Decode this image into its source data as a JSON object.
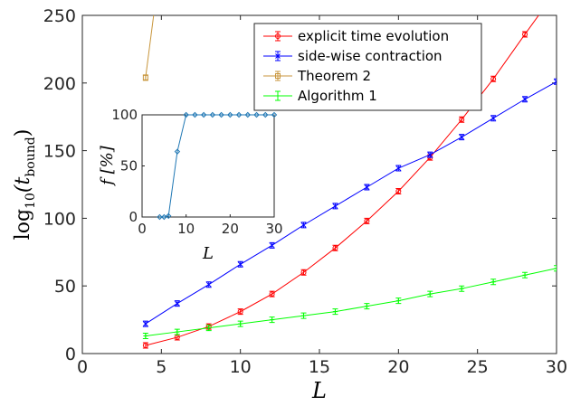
{
  "chart_data": [
    {
      "type": "line",
      "title": "",
      "xlabel": "L",
      "ylabel": {
        "base": "log",
        "sub": "10",
        "arg_open": "(t",
        "arg_sub": "bound",
        "arg_close": ")"
      },
      "xlim": [
        0,
        30
      ],
      "ylim": [
        0,
        250
      ],
      "xticks": [
        0,
        5,
        10,
        15,
        20,
        25,
        30
      ],
      "yticks": [
        0,
        50,
        100,
        150,
        200,
        250
      ],
      "legend_position": "top-right",
      "grid": false,
      "series": [
        {
          "name": "explicit time evolution",
          "color": "#ff0000",
          "marker": "circle",
          "x": [
            4,
            6,
            8,
            10,
            12,
            14,
            16,
            18,
            20,
            22,
            24,
            26,
            28,
            29.3
          ],
          "y": [
            6,
            12,
            20,
            31,
            44,
            60,
            78,
            98,
            120,
            145,
            173,
            203,
            236,
            257
          ],
          "marker_count": 13
        },
        {
          "name": "side-wise contraction",
          "color": "#0000ff",
          "marker": "cross",
          "x": [
            4,
            6,
            8,
            10,
            12,
            14,
            16,
            18,
            20,
            22,
            24,
            26,
            28,
            30
          ],
          "y": [
            22,
            37,
            51,
            66,
            80,
            95,
            109,
            123,
            137,
            147,
            160,
            174,
            188,
            201
          ],
          "marker_count": 14
        },
        {
          "name": "Theorem 2",
          "color": "#c8963c",
          "marker": "square",
          "x": [
            4,
            4.6
          ],
          "y": [
            204,
            258
          ],
          "marker_count": 1
        },
        {
          "name": "Algorithm 1",
          "color": "#00ff00",
          "marker": "plus",
          "x": [
            4,
            6,
            8,
            10,
            12,
            14,
            16,
            18,
            20,
            22,
            24,
            26,
            28,
            30
          ],
          "y": [
            13,
            16,
            19,
            22,
            25,
            28,
            31,
            35,
            39,
            44,
            48,
            53,
            58,
            63
          ],
          "marker_count": 14
        }
      ]
    },
    {
      "type": "line",
      "title": "",
      "xlabel": "L",
      "ylabel": "f [%]",
      "xlim": [
        0,
        30
      ],
      "ylim": [
        0,
        100
      ],
      "xticks": [
        0,
        10,
        20,
        30
      ],
      "yticks": [
        0,
        50,
        100
      ],
      "series": [
        {
          "color": "#1f77b4",
          "marker": "diamond",
          "x": [
            4,
            5,
            6,
            8,
            10,
            12,
            14,
            16,
            18,
            20,
            22,
            24,
            26,
            28,
            30
          ],
          "y": [
            0,
            0,
            1,
            64,
            100,
            100,
            100,
            100,
            100,
            100,
            100,
            100,
            100,
            100,
            100
          ]
        }
      ]
    }
  ]
}
